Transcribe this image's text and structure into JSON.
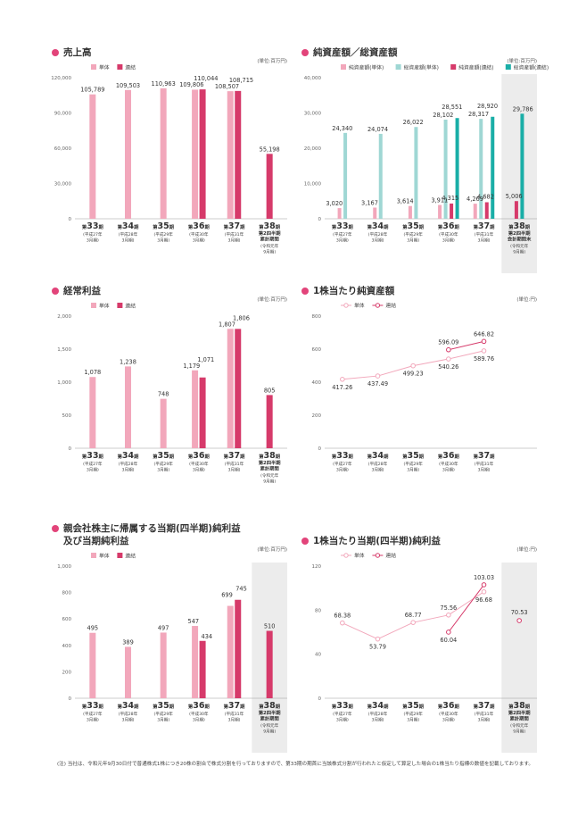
{
  "colors": {
    "tandoku": "#f2a7bb",
    "renketsu": "#d63a6a",
    "sou_tandoku": "#9fd7d4",
    "sou_renketsu": "#1aaea7",
    "shade": "#ececec",
    "axis": "#999999"
  },
  "footnote": "(注) 当社は、令和元年9月30日付で普通株式1株につき20株の割合で株式分割を行っておりますので、第33期の期首に当該株式分割が行われたと仮定して算定した場合の1株当たり指標の数値を記載しております。",
  "chart_data": [
    {
      "id": "sales",
      "type": "bar",
      "title": "売上高",
      "unit": "(単位:百万円)",
      "ylim": [
        0,
        120000
      ],
      "yticks": [
        "0",
        "30,000",
        "60,000",
        "90,000",
        "120,000"
      ],
      "legend": [
        "単体",
        "連結"
      ],
      "periods": [
        {
          "main": "33",
          "era": "(平成27年",
          "month": "3月期)"
        },
        {
          "main": "34",
          "era": "(平成28年",
          "month": "3月期)"
        },
        {
          "main": "35",
          "era": "(平成29年",
          "month": "3月期)"
        },
        {
          "main": "36",
          "era": "(平成30年",
          "month": "3月期)"
        },
        {
          "main": "37",
          "era": "(平成31年",
          "month": "3月期)"
        },
        {
          "main": "38",
          "sub": [
            "第2四半期",
            "累計期間"
          ],
          "era": "(令和元年",
          "month": "9月期)"
        }
      ],
      "series": [
        {
          "name": "単体",
          "values": [
            105789,
            109503,
            110963,
            109806,
            108507,
            null
          ]
        },
        {
          "name": "連結",
          "values": [
            null,
            null,
            null,
            110044,
            108715,
            55198
          ]
        }
      ],
      "labels": [
        [
          "105,789",
          null
        ],
        [
          "109,503",
          null
        ],
        [
          "110,963",
          null
        ],
        [
          "109,806",
          "110,044"
        ],
        [
          "108,507",
          "108,715"
        ],
        [
          null,
          "55,198"
        ]
      ],
      "shade_last": false
    },
    {
      "id": "assets",
      "type": "bar",
      "title": "純資産額／総資産額",
      "unit": "(単位:百万円)",
      "ylim": [
        0,
        40000
      ],
      "yticks": [
        "0",
        "10,000",
        "20,000",
        "30,000",
        "40,000"
      ],
      "legend": [
        "純資産額(単体)",
        "総資産額(単体)",
        "純資産額(連結)",
        "総資産額(連結)"
      ],
      "periods": [
        {
          "main": "33",
          "era": "(平成27年",
          "month": "3月期)"
        },
        {
          "main": "34",
          "era": "(平成28年",
          "month": "3月期)"
        },
        {
          "main": "35",
          "era": "(平成29年",
          "month": "3月期)"
        },
        {
          "main": "36",
          "era": "(平成30年",
          "month": "3月期)"
        },
        {
          "main": "37",
          "era": "(平成31年",
          "month": "3月期)"
        },
        {
          "main": "38",
          "sub": [
            "第2四半期",
            "会計期間末"
          ],
          "era": "(令和元年",
          "month": "9月期)"
        }
      ],
      "series": [
        {
          "name": "純資産額(単体)",
          "values": [
            3020,
            3167,
            3614,
            3911,
            4269,
            null
          ]
        },
        {
          "name": "総資産額(単体)",
          "values": [
            24340,
            24074,
            26022,
            28102,
            28317,
            null
          ]
        },
        {
          "name": "純資産額(連結)",
          "values": [
            null,
            null,
            null,
            4315,
            4682,
            5006
          ]
        },
        {
          "name": "総資産額(連結)",
          "values": [
            null,
            null,
            null,
            28551,
            28920,
            29786
          ]
        }
      ],
      "labels": [
        [
          "3,020",
          "24,340",
          null,
          null
        ],
        [
          "3,167",
          "24,074",
          null,
          null
        ],
        [
          "3,614",
          "26,022",
          null,
          null
        ],
        [
          "3,911",
          "28,102",
          "4,315",
          "28,551"
        ],
        [
          "4,269",
          "28,317",
          "4,682",
          "28,920"
        ],
        [
          null,
          null,
          "5,006",
          "29,786"
        ]
      ],
      "shade_last": true
    },
    {
      "id": "ordinary",
      "type": "bar",
      "title": "経常利益",
      "unit": "(単位:百万円)",
      "ylim": [
        0,
        2000
      ],
      "yticks": [
        "0",
        "500",
        "1,000",
        "1,500",
        "2,000"
      ],
      "legend": [
        "単体",
        "連結"
      ],
      "periods": [
        {
          "main": "33",
          "era": "(平成27年",
          "month": "3月期)"
        },
        {
          "main": "34",
          "era": "(平成28年",
          "month": "3月期)"
        },
        {
          "main": "35",
          "era": "(平成29年",
          "month": "3月期)"
        },
        {
          "main": "36",
          "era": "(平成30年",
          "month": "3月期)"
        },
        {
          "main": "37",
          "era": "(平成31年",
          "month": "3月期)"
        },
        {
          "main": "38",
          "sub": [
            "第2四半期",
            "累計期間"
          ],
          "era": "(令和元年",
          "month": "9月期)"
        }
      ],
      "series": [
        {
          "name": "単体",
          "values": [
            1078,
            1238,
            748,
            1179,
            1807,
            null
          ]
        },
        {
          "name": "連結",
          "values": [
            null,
            null,
            null,
            1071,
            1806,
            805
          ]
        }
      ],
      "labels": [
        [
          "1,078",
          null
        ],
        [
          "1,238",
          null
        ],
        [
          "748",
          null
        ],
        [
          "1,179",
          "1,071"
        ],
        [
          "1,807",
          "1,806"
        ],
        [
          null,
          "805"
        ]
      ],
      "shade_last": false
    },
    {
      "id": "bps",
      "type": "line",
      "title": "1株当たり純資産額",
      "unit": "(単位:円)",
      "ylim": [
        0,
        800
      ],
      "yticks": [
        "0",
        "200",
        "400",
        "600",
        "800"
      ],
      "legend": [
        "単体",
        "連結"
      ],
      "periods": [
        {
          "main": "33",
          "era": "(平成27年",
          "month": "3月期)"
        },
        {
          "main": "34",
          "era": "(平成28年",
          "month": "3月期)"
        },
        {
          "main": "35",
          "era": "(平成29年",
          "month": "3月期)"
        },
        {
          "main": "36",
          "era": "(平成30年",
          "month": "3月期)"
        },
        {
          "main": "37",
          "era": "(平成31年",
          "month": "3月期)"
        }
      ],
      "series": [
        {
          "name": "単体",
          "values": [
            417.26,
            437.49,
            499.23,
            540.26,
            589.76
          ]
        },
        {
          "name": "連結",
          "values": [
            null,
            null,
            null,
            596.09,
            646.82
          ]
        }
      ],
      "labels": [
        [
          "417.26",
          null
        ],
        [
          "437.49",
          null
        ],
        [
          "499.23",
          null
        ],
        [
          "540.26",
          "596.09"
        ],
        [
          "589.76",
          "646.82"
        ]
      ],
      "shade_last": false
    },
    {
      "id": "netincome",
      "type": "bar",
      "title": [
        "親会社株主に帰属する当期(四半期)純利益",
        "及び当期純利益"
      ],
      "unit": "(単位:百万円)",
      "ylim": [
        0,
        1000
      ],
      "yticks": [
        "0",
        "200",
        "400",
        "600",
        "800",
        "1,000"
      ],
      "legend": [
        "単体",
        "連結"
      ],
      "periods": [
        {
          "main": "33",
          "era": "(平成27年",
          "month": "3月期)"
        },
        {
          "main": "34",
          "era": "(平成28年",
          "month": "3月期)"
        },
        {
          "main": "35",
          "era": "(平成29年",
          "month": "3月期)"
        },
        {
          "main": "36",
          "era": "(平成30年",
          "month": "3月期)"
        },
        {
          "main": "37",
          "era": "(平成31年",
          "month": "3月期)"
        },
        {
          "main": "38",
          "sub": [
            "第2四半期",
            "累計期間"
          ],
          "era": "(令和元年",
          "month": "9月期)"
        }
      ],
      "series": [
        {
          "name": "単体",
          "values": [
            495,
            389,
            497,
            547,
            699,
            null
          ]
        },
        {
          "name": "連結",
          "values": [
            null,
            null,
            null,
            434,
            745,
            510
          ]
        }
      ],
      "labels": [
        [
          "495",
          null
        ],
        [
          "389",
          null
        ],
        [
          "497",
          null
        ],
        [
          "547",
          "434"
        ],
        [
          "699",
          "745"
        ],
        [
          null,
          "510"
        ]
      ],
      "shade_last": true
    },
    {
      "id": "eps",
      "type": "line",
      "title": "1株当たり当期(四半期)純利益",
      "unit": "(単位:円)",
      "ylim": [
        0,
        120
      ],
      "yticks": [
        "0",
        "40",
        "80",
        "120"
      ],
      "legend": [
        "単体",
        "連結"
      ],
      "periods": [
        {
          "main": "33",
          "era": "(平成27年",
          "month": "3月期)"
        },
        {
          "main": "34",
          "era": "(平成28年",
          "month": "3月期)"
        },
        {
          "main": "35",
          "era": "(平成29年",
          "month": "3月期)"
        },
        {
          "main": "36",
          "era": "(平成30年",
          "month": "3月期)"
        },
        {
          "main": "37",
          "era": "(平成31年",
          "month": "3月期)"
        },
        {
          "main": "38",
          "sub": [
            "第2四半期",
            "累計期間"
          ],
          "era": "(令和元年",
          "month": "9月期)"
        }
      ],
      "series": [
        {
          "name": "単体",
          "values": [
            68.38,
            53.79,
            68.77,
            75.56,
            96.68,
            null
          ]
        },
        {
          "name": "連結",
          "values": [
            null,
            null,
            null,
            60.04,
            103.03,
            70.53
          ]
        }
      ],
      "labels": [
        [
          "68.38",
          null
        ],
        [
          "53.79",
          null
        ],
        [
          "68.77",
          null
        ],
        [
          "75.56",
          "60.04"
        ],
        [
          "96.68",
          "103.03"
        ],
        [
          null,
          "70.53"
        ]
      ],
      "connect_last": false,
      "shade_last": true
    }
  ]
}
